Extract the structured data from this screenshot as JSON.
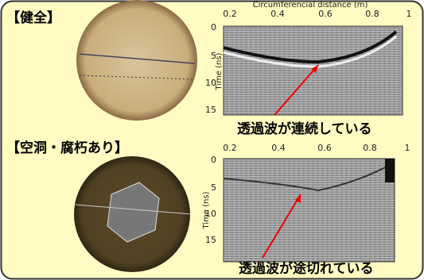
{
  "panels": [
    {
      "label": "【健全】",
      "caption": "透過波が連続している",
      "x_axis_title": "Circumferencial distance (m)",
      "xticks": [
        "0.2",
        "0.4",
        "0.6",
        "0.8",
        "1"
      ],
      "y_axis_title": "Time (ns)",
      "yticks": [
        "0",
        "5",
        "10",
        "15"
      ]
    },
    {
      "label": "【空洞・腐朽あり】",
      "caption": "透過波が途切れている",
      "xticks": [
        "0.2",
        "0.4",
        "0.6",
        "0.8",
        "1"
      ],
      "y_axis_title": "Time (ns)",
      "yticks": [
        "0",
        "5",
        "10",
        "15"
      ]
    }
  ]
}
